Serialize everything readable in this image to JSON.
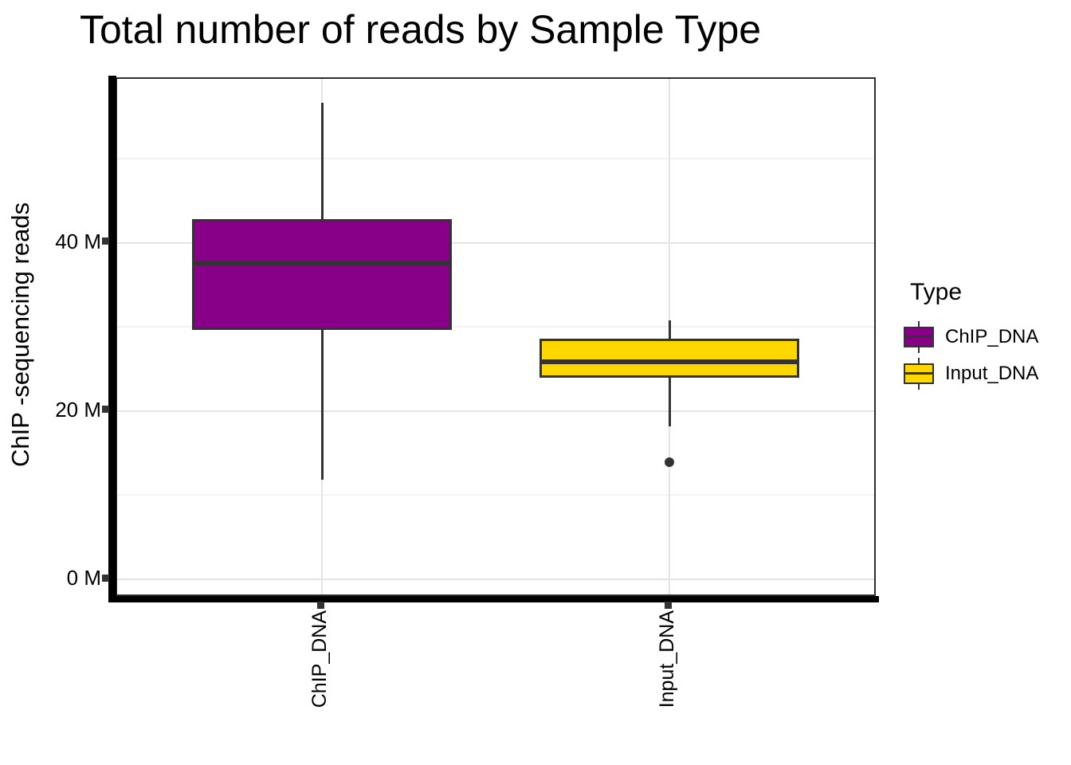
{
  "title": "Total number of reads by Sample Type",
  "y_axis": {
    "title": "ChIP -sequencing reads",
    "major_ticks": [
      {
        "label": "0 M",
        "value": 0
      },
      {
        "label": "20 M",
        "value": 20
      },
      {
        "label": "40 M",
        "value": 40
      }
    ],
    "minor_tick_values": [
      10,
      30,
      50
    ]
  },
  "x_axis": {
    "labels": [
      "ChIP_DNA",
      "Input_DNA"
    ]
  },
  "legend": {
    "title": "Type",
    "items": [
      {
        "label": "ChIP_DNA",
        "color": "#870087"
      },
      {
        "label": "Input_DNA",
        "color": "#FFD700"
      }
    ]
  },
  "colors": {
    "box_stroke": "#333333",
    "grid_major": "#e4e4e4",
    "grid_minor": "#f2f2f2",
    "axis_line": "#000000",
    "panel_border": "#2d2d2d"
  },
  "chart_data": {
    "type": "boxplot",
    "title": "Total number of reads by Sample Type",
    "xlabel": "",
    "ylabel": "ChIP -sequencing reads",
    "unit": "millions of reads (M)",
    "ylim": [
      -2.2,
      59.5
    ],
    "grid": "on",
    "legend_position": "right",
    "categories": [
      "ChIP_DNA",
      "Input_DNA"
    ],
    "series": [
      {
        "name": "ChIP_DNA",
        "fill": "#870087",
        "whisker_low": 11.8,
        "q1": 29.7,
        "median": 37.6,
        "q3": 42.8,
        "whisker_high": 56.7,
        "outliers": []
      },
      {
        "name": "Input_DNA",
        "fill": "#FFD700",
        "whisker_low": 18.2,
        "q1": 24.0,
        "median": 25.9,
        "q3": 28.6,
        "whisker_high": 30.8,
        "outliers": [
          13.9
        ]
      }
    ]
  }
}
